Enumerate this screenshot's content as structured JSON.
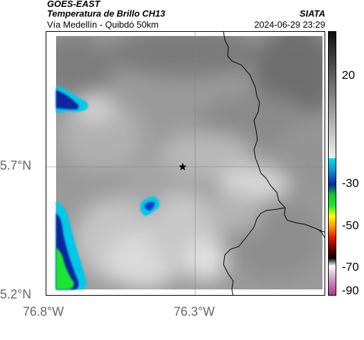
{
  "header": {
    "satellite": "GOES-EAST",
    "product": "Temperatura de Brillo CH13",
    "region": "Vía Medellín - Quibdó 50km",
    "agency": "SIATA",
    "datetime": "2024-06-29 23:29"
  },
  "map": {
    "lon_ticks": [
      "76.8°W",
      "76.3°W"
    ],
    "lat_ticks": [
      "5.7°N",
      "5.2°N"
    ],
    "marker_icon": "star-marker-icon",
    "colors": {
      "cloud_light": "#e6e6e6",
      "cloud_mid": "#8c8c8c",
      "cyan": "#00c8e6",
      "blue": "#0a28a0",
      "green": "#1ee632",
      "border": "#000000"
    }
  },
  "colorbar": {
    "tick_labels": [
      "20",
      "-30",
      "-50",
      "-70",
      "-90"
    ],
    "tick_values": [
      20,
      -30,
      -50,
      -70,
      -90
    ],
    "range": [
      -95,
      35
    ]
  }
}
